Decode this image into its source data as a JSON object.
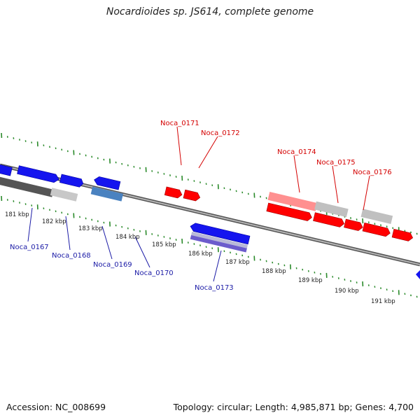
{
  "title": "Nocardioides sp. JS614, complete genome",
  "footer": {
    "accession": "Accession: NC_008699",
    "summary": "Topology: circular; Length: 4,985,871 bp; Genes: 4,700"
  },
  "colors": {
    "backbone": "#8a8a8a",
    "ticks": "#2a8a2a",
    "plus_strand": "#ff0000",
    "minus_strand": "#0000ff",
    "pseudo_light": "#c0c0c0",
    "label_red": "#d40000",
    "label_blue": "#1a1aa6"
  },
  "kbp_labels": [
    "181 kbp",
    "182 kbp",
    "183 kbp",
    "184 kbp",
    "185 kbp",
    "186 kbp",
    "187 kbp",
    "188 kbp",
    "189 kbp",
    "190 kbp",
    "191 kbp"
  ],
  "gene_labels": {
    "top": [
      "Noca_0171",
      "Noca_0172",
      "Noca_0174",
      "Noca_0175",
      "Noca_0176"
    ],
    "bottom": [
      "Noca_0167",
      "Noca_0168",
      "Noca_0169",
      "Noca_0170",
      "Noca_0173"
    ]
  }
}
